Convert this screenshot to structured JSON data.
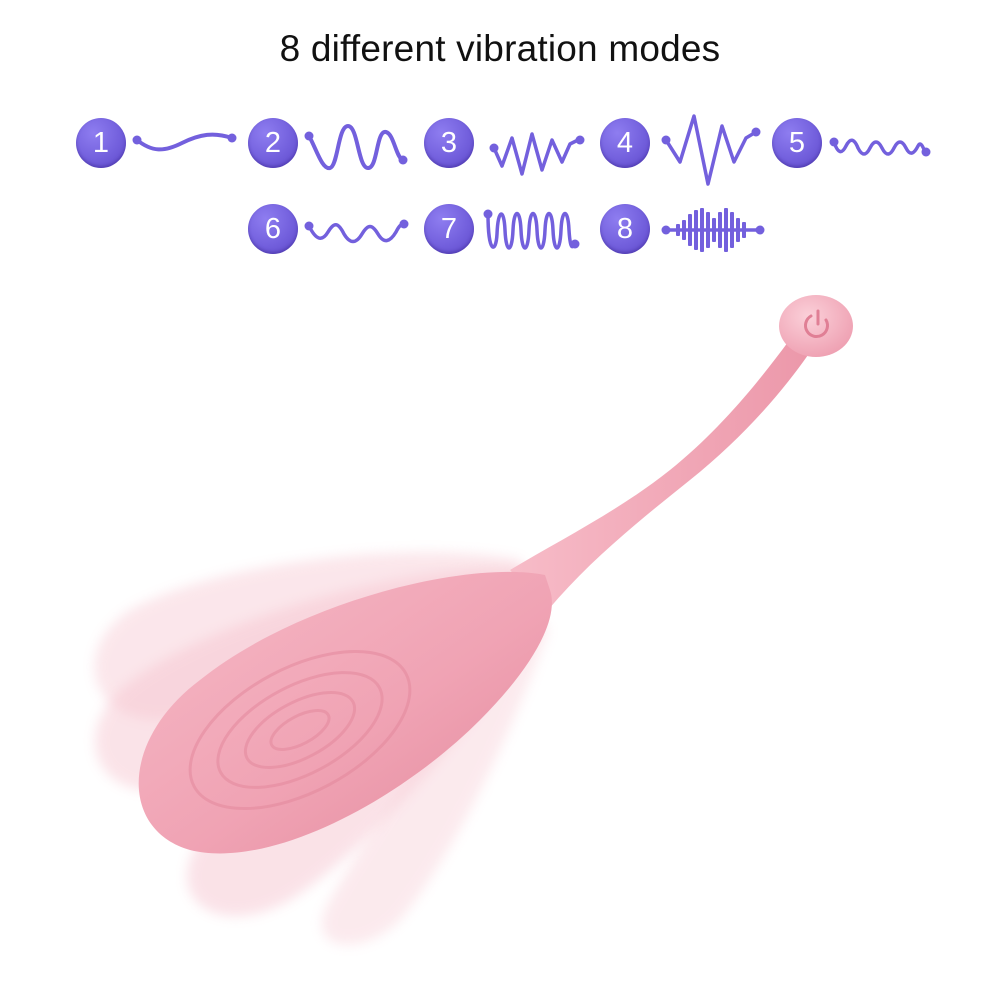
{
  "headline": "8 different vibration modes",
  "colors": {
    "mode_accent": "#7360dd",
    "product_pink": "#f0a5b6",
    "background": "#ffffff"
  },
  "modes": [
    {
      "number": "1",
      "pattern": "gentle-wave-icon"
    },
    {
      "number": "2",
      "pattern": "large-wave-icon"
    },
    {
      "number": "3",
      "pattern": "zigzag-wave-icon"
    },
    {
      "number": "4",
      "pattern": "tall-zigzag-wave-icon"
    },
    {
      "number": "5",
      "pattern": "small-ripple-wave-icon"
    },
    {
      "number": "6",
      "pattern": "medium-wave-icon"
    },
    {
      "number": "7",
      "pattern": "dense-coil-wave-icon"
    },
    {
      "number": "8",
      "pattern": "burst-wave-icon"
    }
  ]
}
